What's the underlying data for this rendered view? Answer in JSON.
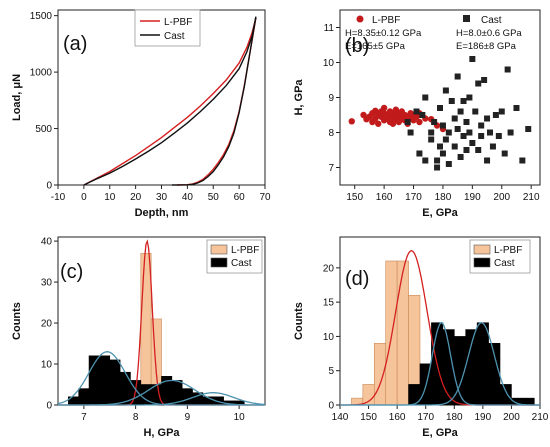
{
  "chart_data": [
    {
      "panel": "(a)",
      "type": "line",
      "xlabel": "Depth, nm",
      "ylabel": "Load, μN",
      "xlim": [
        -10,
        70
      ],
      "ylim": [
        0,
        1550
      ],
      "xticks": [
        -10,
        0,
        10,
        20,
        30,
        40,
        50,
        60,
        70
      ],
      "yticks": [
        0,
        500,
        1000,
        1500
      ],
      "legend": {
        "position": "top-left",
        "entries": [
          "L-PBF",
          "Cast"
        ]
      },
      "series": [
        {
          "name": "L-PBF",
          "color": "#d62020",
          "loading": [
            [
              0,
              0
            ],
            [
              5,
              60
            ],
            [
              10,
              120
            ],
            [
              15,
              190
            ],
            [
              20,
              260
            ],
            [
              25,
              340
            ],
            [
              30,
              420
            ],
            [
              35,
              510
            ],
            [
              40,
              600
            ],
            [
              45,
              700
            ],
            [
              50,
              810
            ],
            [
              55,
              930
            ],
            [
              60,
              1080
            ],
            [
              63,
              1220
            ],
            [
              65,
              1350
            ],
            [
              66.5,
              1480
            ]
          ],
          "unloading": [
            [
              66.5,
              1480
            ],
            [
              64,
              1150
            ],
            [
              62,
              880
            ],
            [
              60,
              650
            ],
            [
              58,
              480
            ],
            [
              56,
              360
            ],
            [
              54,
              270
            ],
            [
              52,
              200
            ],
            [
              50,
              140
            ],
            [
              48,
              90
            ],
            [
              46,
              50
            ],
            [
              44,
              25
            ],
            [
              42,
              10
            ],
            [
              40,
              3
            ],
            [
              36,
              0
            ]
          ]
        },
        {
          "name": "Cast",
          "color": "#111111",
          "loading": [
            [
              0,
              0
            ],
            [
              5,
              55
            ],
            [
              10,
              105
            ],
            [
              15,
              165
            ],
            [
              20,
              230
            ],
            [
              25,
              300
            ],
            [
              30,
              375
            ],
            [
              35,
              460
            ],
            [
              40,
              550
            ],
            [
              45,
              650
            ],
            [
              50,
              760
            ],
            [
              55,
              880
            ],
            [
              60,
              1030
            ],
            [
              63,
              1180
            ],
            [
              65,
              1320
            ],
            [
              66.5,
              1490
            ]
          ],
          "unloading": [
            [
              66.5,
              1490
            ],
            [
              64,
              1150
            ],
            [
              62,
              870
            ],
            [
              60,
              640
            ],
            [
              58,
              460
            ],
            [
              56,
              340
            ],
            [
              54,
              250
            ],
            [
              52,
              180
            ],
            [
              50,
              120
            ],
            [
              48,
              75
            ],
            [
              46,
              40
            ],
            [
              44,
              18
            ],
            [
              42,
              6
            ],
            [
              40,
              1
            ],
            [
              34,
              0
            ]
          ]
        }
      ]
    },
    {
      "panel": "(b)",
      "type": "scatter",
      "xlabel": "E, GPa",
      "ylabel": "H, GPa",
      "xlim": [
        145,
        213
      ],
      "ylim": [
        6.5,
        11.5
      ],
      "xticks": [
        150,
        160,
        170,
        180,
        190,
        200,
        210
      ],
      "yticks": [
        7,
        8,
        9,
        10,
        11
      ],
      "legend": {
        "position": "top",
        "entries": [
          "L-PBF",
          "Cast"
        ]
      },
      "annotations": {
        "lpbf_h": "H=8.35±0.12 GPa",
        "lpbf_e": "E=165±5 GPa",
        "cast_h": "H=8.0±0.6 GPa",
        "cast_e": "E=186±8 GPa"
      },
      "series": [
        {
          "name": "L-PBF",
          "color": "#c21b1b",
          "marker": "circle",
          "points": [
            [
              149,
              8.32
            ],
            [
              153,
              8.5
            ],
            [
              154,
              8.38
            ],
            [
              155,
              8.45
            ],
            [
              156,
              8.55
            ],
            [
              156,
              8.3
            ],
            [
              157,
              8.4
            ],
            [
              157,
              8.62
            ],
            [
              158,
              8.5
            ],
            [
              158,
              8.25
            ],
            [
              159,
              8.45
            ],
            [
              159,
              8.6
            ],
            [
              160,
              8.35
            ],
            [
              160,
              8.55
            ],
            [
              160,
              8.7
            ],
            [
              161,
              8.4
            ],
            [
              161,
              8.5
            ],
            [
              162,
              8.3
            ],
            [
              162,
              8.6
            ],
            [
              162,
              8.45
            ],
            [
              163,
              8.55
            ],
            [
              163,
              8.4
            ],
            [
              163,
              8.25
            ],
            [
              164,
              8.5
            ],
            [
              164,
              8.35
            ],
            [
              164,
              8.65
            ],
            [
              165,
              8.45
            ],
            [
              165,
              8.3
            ],
            [
              165,
              8.55
            ],
            [
              166,
              8.4
            ],
            [
              166,
              8.6
            ],
            [
              167,
              8.5
            ],
            [
              167,
              8.35
            ],
            [
              168,
              8.45
            ],
            [
              168,
              8.25
            ],
            [
              169,
              8.55
            ],
            [
              169,
              8.4
            ],
            [
              170,
              8.35
            ],
            [
              170,
              8.5
            ],
            [
              171,
              8.45
            ],
            [
              172,
              8.3
            ],
            [
              172,
              8.55
            ],
            [
              174,
              8.4
            ],
            [
              176,
              8.38
            ],
            [
              178,
              8.2
            ],
            [
              180,
              8.1
            ]
          ]
        },
        {
          "name": "Cast",
          "color": "#222222",
          "marker": "square",
          "points": [
            [
              168,
              8.3
            ],
            [
              169,
              8.0
            ],
            [
              171,
              8.6
            ],
            [
              172,
              7.4
            ],
            [
              173,
              8.5
            ],
            [
              174,
              7.2
            ],
            [
              174,
              9.0
            ],
            [
              176,
              8.0
            ],
            [
              176,
              7.8
            ],
            [
              177,
              8.3
            ],
            [
              178,
              7.2
            ],
            [
              178,
              7.0
            ],
            [
              179,
              7.6
            ],
            [
              179,
              8.7
            ],
            [
              180,
              7.4
            ],
            [
              180,
              8.2
            ],
            [
              181,
              7.8
            ],
            [
              181,
              9.2
            ],
            [
              182,
              8.0
            ],
            [
              182,
              7.1
            ],
            [
              183,
              8.9
            ],
            [
              184,
              7.6
            ],
            [
              184,
              8.4
            ],
            [
              185,
              9.6
            ],
            [
              185,
              8.1
            ],
            [
              186,
              7.3
            ],
            [
              186,
              8.6
            ],
            [
              187,
              7.9
            ],
            [
              187,
              8.9
            ],
            [
              188,
              8.3
            ],
            [
              188,
              7.5
            ],
            [
              189,
              9.0
            ],
            [
              189,
              8.0
            ],
            [
              190,
              10.1
            ],
            [
              190,
              7.7
            ],
            [
              191,
              8.6
            ],
            [
              192,
              9.4
            ],
            [
              192,
              7.5
            ],
            [
              193,
              8.2
            ],
            [
              193,
              7.9
            ],
            [
              194,
              9.5
            ],
            [
              195,
              8.4
            ],
            [
              195,
              7.2
            ],
            [
              196,
              8.0
            ],
            [
              197,
              7.6
            ],
            [
              198,
              8.5
            ],
            [
              199,
              7.9
            ],
            [
              200,
              8.6
            ],
            [
              201,
              7.4
            ],
            [
              202,
              9.8
            ],
            [
              203,
              8.0
            ],
            [
              205,
              8.7
            ],
            [
              207,
              7.2
            ],
            [
              209,
              8.1
            ]
          ]
        }
      ]
    },
    {
      "panel": "(c)",
      "type": "bar",
      "xlabel": "H, GPa",
      "ylabel": "Counts",
      "xlim": [
        6.5,
        10.5
      ],
      "ylim": [
        0,
        41
      ],
      "xticks": [
        7,
        8,
        9,
        10
      ],
      "yticks": [
        0,
        10,
        20,
        30,
        40
      ],
      "legend": {
        "position": "top-right",
        "entries": [
          "L-PBF",
          "Cast"
        ]
      },
      "bin_width": 0.2,
      "series": [
        {
          "name": "L-PBF",
          "color": "#f6c49a",
          "bin_centers": [
            8.0,
            8.2,
            8.4
          ],
          "values": [
            1,
            37,
            21
          ]
        },
        {
          "name": "Cast",
          "color": "#000000",
          "bin_centers": [
            6.8,
            7.0,
            7.2,
            7.4,
            7.6,
            7.8,
            8.0,
            8.2,
            8.4,
            8.6,
            8.8,
            9.0,
            9.2,
            9.4,
            9.6,
            9.8,
            10.0
          ],
          "values": [
            2,
            4,
            12,
            12,
            11,
            8,
            6,
            5,
            5,
            7,
            6,
            4,
            3,
            2,
            2,
            1,
            1
          ]
        }
      ],
      "fits": [
        {
          "color": "#d42020",
          "type": "gaussian",
          "amplitude": 40,
          "mean": 8.22,
          "sigma": 0.1
        },
        {
          "color": "#4d93b0",
          "type": "gaussian",
          "amplitude": 13,
          "mean": 7.45,
          "sigma": 0.35
        },
        {
          "color": "#4d93b0",
          "type": "gaussian",
          "amplitude": 6,
          "mean": 8.7,
          "sigma": 0.45
        },
        {
          "color": "#4d93b0",
          "type": "gaussian",
          "amplitude": 3,
          "mean": 9.5,
          "sigma": 0.4
        }
      ]
    },
    {
      "panel": "(d)",
      "type": "bar",
      "xlabel": "E, GPa",
      "ylabel": "Counts",
      "xlim": [
        140,
        210
      ],
      "ylim": [
        0,
        24.5
      ],
      "xticks": [
        140,
        150,
        160,
        170,
        180,
        190,
        200,
        210
      ],
      "yticks": [
        0,
        5,
        10,
        15,
        20
      ],
      "legend": {
        "position": "top-right",
        "entries": [
          "L-PBF",
          "Cast"
        ]
      },
      "bin_width": 4,
      "series": [
        {
          "name": "L-PBF",
          "color": "#f6c49a",
          "bin_centers": [
            146,
            150,
            154,
            158,
            162,
            166,
            170
          ],
          "values": [
            1,
            3,
            9,
            21,
            21,
            16,
            6
          ]
        },
        {
          "name": "Cast",
          "color": "#000000",
          "bin_centers": [
            166,
            170,
            174,
            178,
            182,
            186,
            190,
            194,
            198,
            202,
            206
          ],
          "values": [
            3,
            6,
            12,
            11,
            10,
            11,
            12,
            9,
            3,
            1,
            1
          ]
        }
      ],
      "fits": [
        {
          "color": "#d42020",
          "type": "gaussian",
          "amplitude": 22.5,
          "mean": 165,
          "sigma": 5.5
        },
        {
          "color": "#4d93b0",
          "type": "gaussian",
          "amplitude": 12,
          "mean": 175.5,
          "sigma": 3.2
        },
        {
          "color": "#4d93b0",
          "type": "gaussian",
          "amplitude": 12,
          "mean": 189.5,
          "sigma": 4.5
        }
      ]
    }
  ]
}
